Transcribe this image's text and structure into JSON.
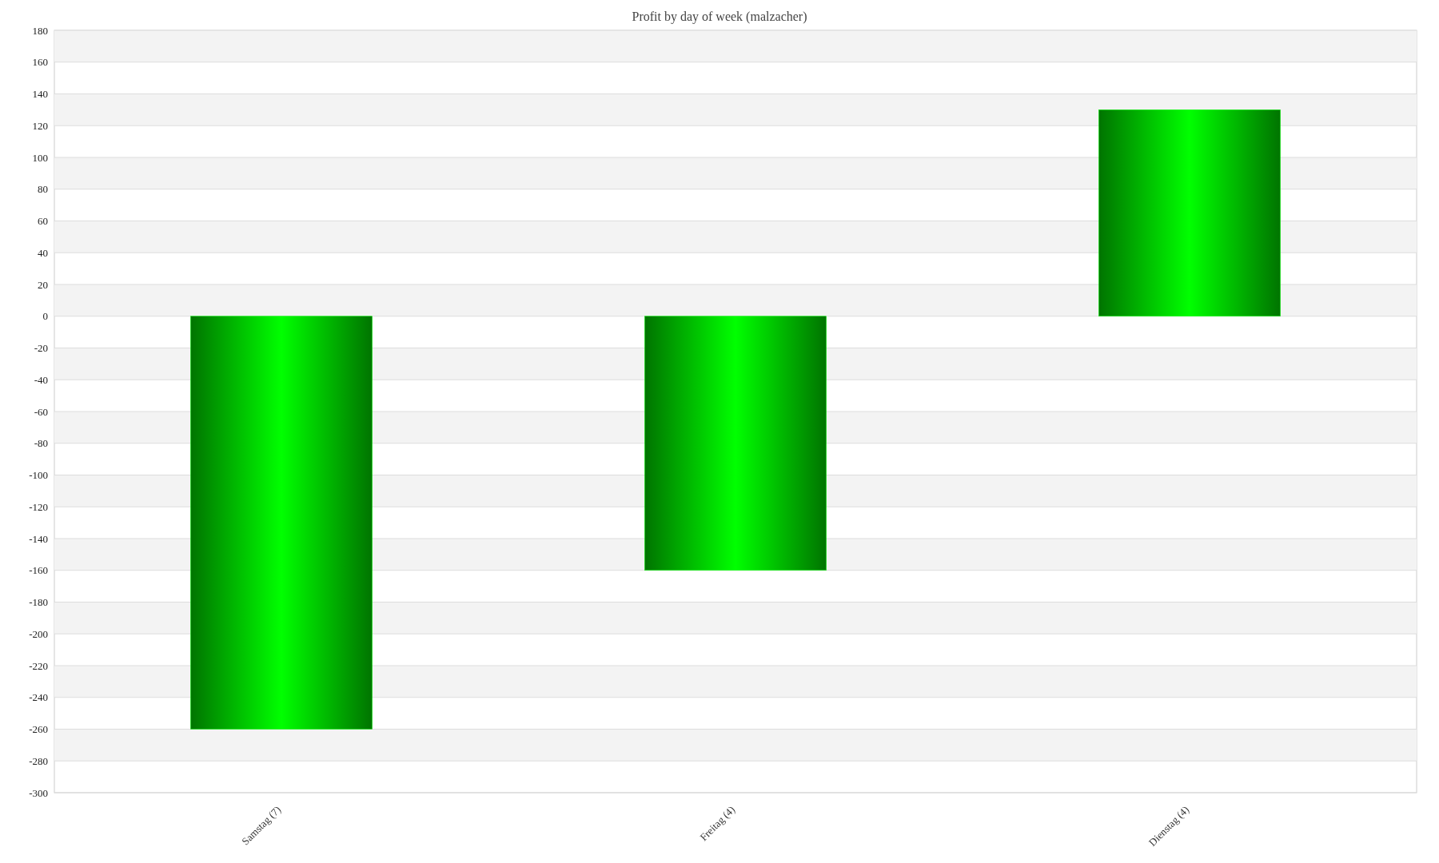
{
  "chart_data": {
    "type": "bar",
    "title": "Profit by day of week  (malzacher)",
    "categories": [
      "Samstag (7)",
      "Freitag (4)",
      "Dienstag (4)"
    ],
    "values": [
      -260,
      -160,
      130
    ],
    "color": "#00ff00",
    "ylim": [
      -300,
      180
    ],
    "yticks": [
      -300,
      -280,
      -260,
      -240,
      -220,
      -200,
      -180,
      -160,
      -140,
      -120,
      -100,
      -80,
      -60,
      -40,
      -20,
      0,
      20,
      40,
      60,
      80,
      100,
      120,
      140,
      160,
      180
    ],
    "grid": true
  }
}
